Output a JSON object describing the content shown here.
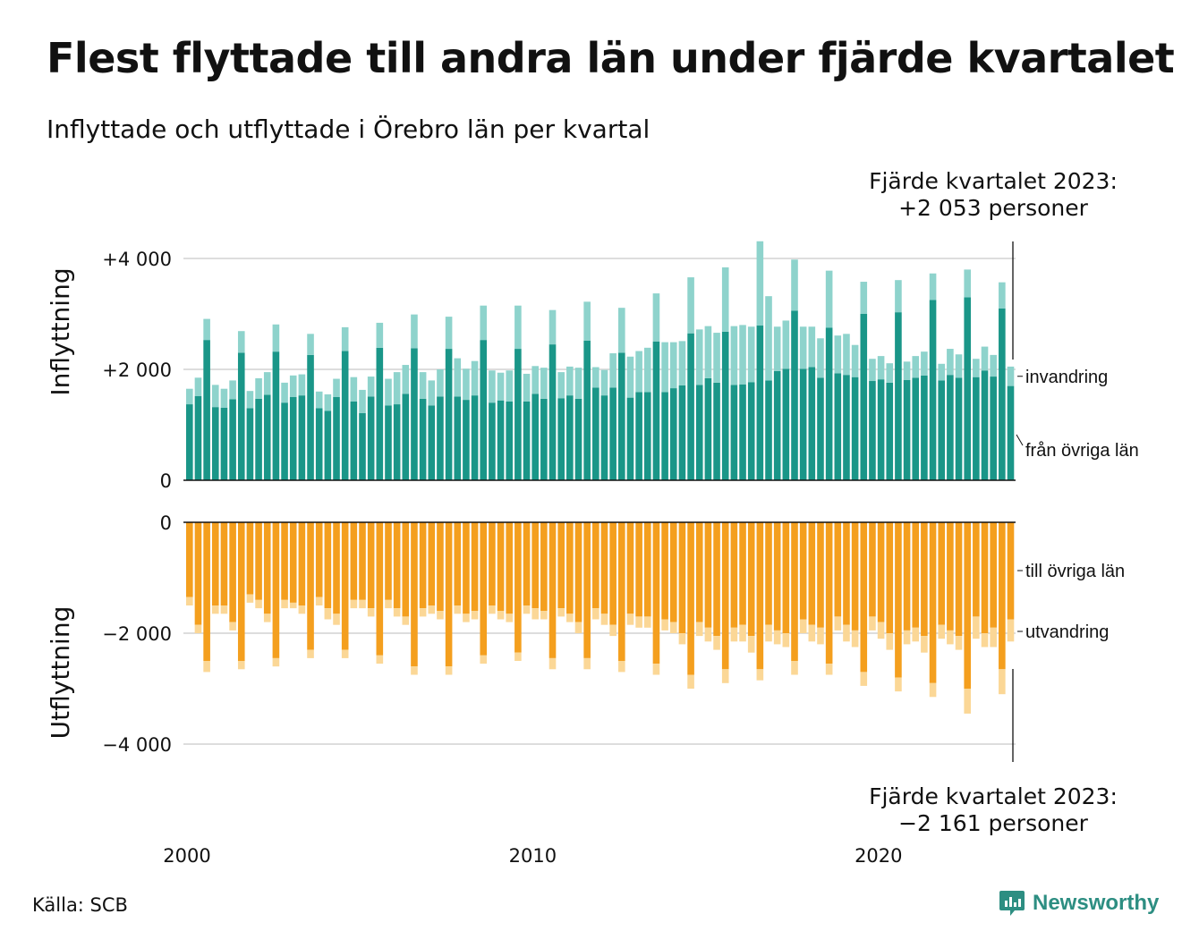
{
  "title": "Flest flyttade till andra län under fjärde kvartalet",
  "subtitle": "Inflyttade och utflyttade i Örebro län per kvartal",
  "annotation_top": {
    "line1": "Fjärde kvartalet 2023:",
    "line2": "+2 053 personer"
  },
  "annotation_bottom": {
    "line1": "Fjärde kvartalet 2023:",
    "line2": "−2 161 personer"
  },
  "source": "Källa: SCB",
  "logo": "Newsworthy",
  "colors": {
    "dom_in": "#1a9688",
    "imm": "#8ed3cc",
    "dom_out": "#f49f1e",
    "emi": "#fbd796",
    "grid": "#dddddd"
  },
  "chart_data": [
    {
      "type": "bar",
      "stacked": true,
      "ylabel": "Inflyttning",
      "ylim": [
        0,
        4300
      ],
      "yticks": [
        {
          "value": 0,
          "label": "0"
        },
        {
          "value": 2000,
          "label": "+2 000"
        },
        {
          "value": 4000,
          "label": "+4 000"
        }
      ],
      "start": "2000 Q1",
      "series": [
        {
          "name": "från övriga län",
          "values": [
            1370,
            1520,
            2530,
            1320,
            1310,
            1460,
            2300,
            1300,
            1470,
            1540,
            2320,
            1400,
            1500,
            1530,
            2260,
            1300,
            1250,
            1500,
            2330,
            1420,
            1210,
            1510,
            2390,
            1350,
            1370,
            1560,
            2380,
            1470,
            1350,
            1510,
            2370,
            1510,
            1450,
            1530,
            2530,
            1400,
            1440,
            1420,
            2370,
            1420,
            1560,
            1470,
            2450,
            1480,
            1530,
            1470,
            2520,
            1670,
            1530,
            1670,
            2300,
            1490,
            1590,
            1590,
            2500,
            1590,
            1660,
            1710,
            2650,
            1720,
            1840,
            1760,
            2680,
            1720,
            1730,
            1770,
            2790,
            1800,
            1970,
            2010,
            3060,
            2010,
            2040,
            1850,
            2750,
            1930,
            1900,
            1860,
            3000,
            1790,
            1820,
            1760,
            3030,
            1810,
            1850,
            1890,
            3250,
            1800,
            1900,
            1850,
            3300,
            1860,
            1980,
            1870,
            3100,
            1700
          ]
        },
        {
          "name": "invandring",
          "values": [
            280,
            330,
            380,
            400,
            340,
            340,
            390,
            310,
            370,
            410,
            490,
            360,
            390,
            380,
            380,
            300,
            300,
            330,
            430,
            440,
            420,
            360,
            450,
            480,
            580,
            520,
            610,
            480,
            450,
            490,
            580,
            690,
            560,
            620,
            620,
            580,
            500,
            560,
            780,
            500,
            500,
            560,
            620,
            470,
            520,
            560,
            700,
            370,
            460,
            620,
            810,
            740,
            740,
            800,
            870,
            900,
            830,
            800,
            1010,
            1000,
            940,
            900,
            1160,
            1060,
            1070,
            1000,
            1520,
            1520,
            800,
            870,
            920,
            760,
            730,
            710,
            1030,
            680,
            740,
            580,
            580,
            400,
            420,
            350,
            580,
            330,
            390,
            430,
            480,
            300,
            470,
            420,
            500,
            330,
            430,
            390,
            470,
            350
          ]
        }
      ]
    },
    {
      "type": "bar",
      "stacked": true,
      "ylabel": "Utflyttning",
      "ylim": [
        -4300,
        0
      ],
      "yticks": [
        {
          "value": 0,
          "label": "0"
        },
        {
          "value": -2000,
          "label": "−2 000"
        },
        {
          "value": -4000,
          "label": "−4 000"
        }
      ],
      "start": "2000 Q1",
      "series": [
        {
          "name": "till övriga län",
          "values": [
            -1350,
            -1850,
            -2500,
            -1500,
            -1500,
            -1800,
            -2500,
            -1300,
            -1400,
            -1650,
            -2450,
            -1400,
            -1450,
            -1500,
            -2300,
            -1350,
            -1550,
            -1650,
            -2300,
            -1400,
            -1400,
            -1550,
            -2400,
            -1400,
            -1550,
            -1700,
            -2600,
            -1550,
            -1500,
            -1600,
            -2600,
            -1500,
            -1650,
            -1600,
            -2400,
            -1500,
            -1600,
            -1650,
            -2350,
            -1500,
            -1550,
            -1600,
            -2450,
            -1550,
            -1650,
            -1800,
            -2450,
            -1550,
            -1650,
            -1850,
            -2500,
            -1650,
            -1700,
            -1700,
            -2550,
            -1750,
            -1800,
            -2000,
            -2750,
            -1800,
            -1900,
            -2050,
            -2650,
            -1900,
            -1850,
            -2050,
            -2650,
            -1850,
            -1950,
            -2000,
            -2500,
            -1750,
            -1850,
            -1900,
            -2550,
            -1700,
            -1850,
            -1950,
            -2700,
            -1700,
            -1800,
            -2000,
            -2800,
            -1950,
            -1900,
            -2050,
            -2900,
            -1850,
            -1950,
            -2050,
            -3000,
            -1700,
            -2000,
            -1900,
            -2650,
            -1750
          ]
        },
        {
          "name": "utvandring",
          "values": [
            -150,
            -150,
            -200,
            -150,
            -150,
            -150,
            -150,
            -150,
            -150,
            -150,
            -150,
            -150,
            -100,
            -150,
            -150,
            -150,
            -200,
            -200,
            -150,
            -150,
            -150,
            -150,
            -150,
            -150,
            -150,
            -150,
            -150,
            -150,
            -150,
            -150,
            -150,
            -150,
            -150,
            -150,
            -150,
            -150,
            -150,
            -150,
            -150,
            -150,
            -200,
            -150,
            -200,
            -150,
            -150,
            -200,
            -200,
            -200,
            -200,
            -200,
            -200,
            -200,
            -200,
            -200,
            -200,
            -200,
            -200,
            -200,
            -250,
            -250,
            -250,
            -250,
            -250,
            -250,
            -300,
            -300,
            -200,
            -300,
            -250,
            -250,
            -250,
            -250,
            -300,
            -300,
            -200,
            -250,
            -300,
            -300,
            -250,
            -250,
            -300,
            -300,
            -250,
            -250,
            -250,
            -300,
            -250,
            -250,
            -250,
            -250,
            -450,
            -400,
            -250,
            -350,
            -450,
            -400
          ]
        }
      ]
    }
  ],
  "xticks": [
    {
      "label": "2000",
      "index": 0
    },
    {
      "label": "2010",
      "index": 40
    },
    {
      "label": "2020",
      "index": 80
    }
  ]
}
